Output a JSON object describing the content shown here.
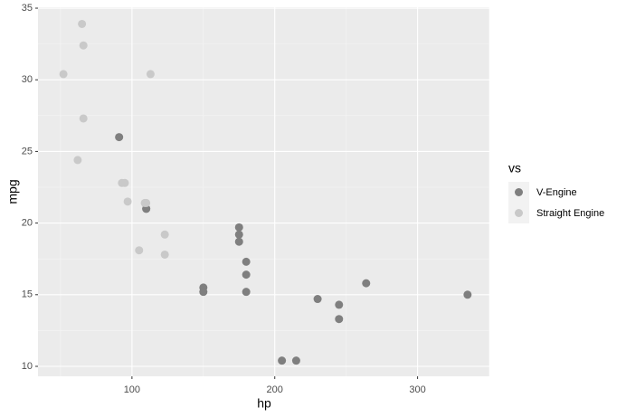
{
  "chart_data": {
    "type": "scatter",
    "x_label": "hp",
    "y_label": "mpg",
    "legend_title": "vs",
    "legend_position": "right",
    "xlim": [
      34.2,
      350.3
    ],
    "ylim": [
      9.305,
      35.065
    ],
    "xticks": [
      100,
      200,
      300
    ],
    "yticks": [
      10,
      15,
      20,
      25,
      30,
      35
    ],
    "grid": true,
    "minor_grid": true,
    "series": [
      {
        "name": "V-Engine",
        "color": "#7f7f7f",
        "x": [
          110,
          110,
          175,
          245,
          180,
          180,
          180,
          205,
          215,
          230,
          150,
          150,
          245,
          175,
          91,
          264,
          175,
          335
        ],
        "y": [
          21,
          21,
          18.7,
          14.3,
          16.4,
          17.3,
          15.2,
          10.4,
          10.4,
          14.7,
          15.5,
          15.2,
          13.3,
          19.2,
          26,
          15.8,
          19.7,
          15
        ]
      },
      {
        "name": "Straight Engine",
        "color": "#c9c9c9",
        "x": [
          93,
          110,
          105,
          62,
          95,
          123,
          123,
          66,
          52,
          65,
          97,
          66,
          113,
          109
        ],
        "y": [
          22.8,
          21.4,
          18.1,
          24.4,
          22.8,
          19.2,
          17.8,
          32.4,
          30.4,
          33.9,
          21.5,
          27.3,
          30.4,
          21.4
        ]
      }
    ]
  }
}
